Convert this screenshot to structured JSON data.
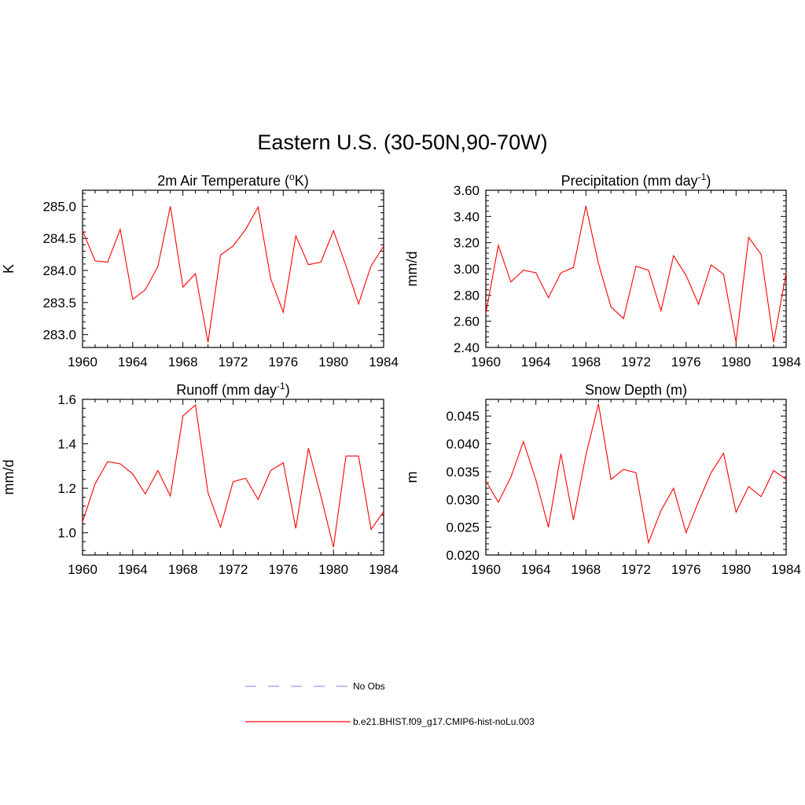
{
  "title": "Eastern U.S. (30-50N,90-70W)",
  "colors": {
    "model": "#ff0000",
    "obs": "#9999ee",
    "axis": "#000000"
  },
  "legend": [
    {
      "label": "No Obs",
      "style": "dashed",
      "color": "#9999ee"
    },
    {
      "label": "b.e21.BHIST.f09_g17.CMIP6-hist-noLu.003",
      "style": "solid",
      "color": "#ff0000"
    }
  ],
  "chart_data": [
    {
      "type": "line",
      "title_main": "2m Air Temperature (",
      "title_sup": "o",
      "title_tail": "K)",
      "ylabel": "K",
      "xlim": [
        1960,
        1984
      ],
      "ylim": [
        282.8,
        285.25
      ],
      "xticks": [
        "1960",
        "1964",
        "1968",
        "1972",
        "1976",
        "1980",
        "1984"
      ],
      "yticks": [
        "283.0",
        "283.5",
        "284.0",
        "284.5",
        "285.0"
      ],
      "x": [
        1960,
        1961,
        1962,
        1963,
        1964,
        1965,
        1966,
        1967,
        1968,
        1969,
        1970,
        1971,
        1972,
        1973,
        1974,
        1975,
        1976,
        1977,
        1978,
        1979,
        1980,
        1981,
        1982,
        1983,
        1984
      ],
      "series": [
        {
          "values": [
            284.62,
            284.15,
            284.13,
            284.64,
            283.55,
            283.7,
            284.06,
            285.0,
            283.74,
            283.95,
            282.88,
            284.24,
            284.38,
            284.64,
            284.99,
            283.87,
            283.35,
            284.54,
            284.09,
            284.13,
            284.62,
            284.07,
            283.48,
            284.07,
            284.38
          ]
        }
      ]
    },
    {
      "type": "line",
      "title_main": "Precipitation (mm day",
      "title_sup": "-1",
      "title_tail": ")",
      "ylabel": "mm/d",
      "xlim": [
        1960,
        1984
      ],
      "ylim": [
        2.4,
        3.6
      ],
      "xticks": [
        "1960",
        "1964",
        "1968",
        "1972",
        "1976",
        "1980",
        "1984"
      ],
      "yticks": [
        "2.40",
        "2.60",
        "2.80",
        "3.00",
        "3.20",
        "3.40",
        "3.60"
      ],
      "x": [
        1960,
        1961,
        1962,
        1963,
        1964,
        1965,
        1966,
        1967,
        1968,
        1969,
        1970,
        1971,
        1972,
        1973,
        1974,
        1975,
        1976,
        1977,
        1978,
        1979,
        1980,
        1981,
        1982,
        1983,
        1984
      ],
      "series": [
        {
          "values": [
            2.66,
            3.18,
            2.9,
            2.99,
            2.97,
            2.78,
            2.97,
            3.01,
            3.48,
            3.04,
            2.71,
            2.62,
            3.02,
            2.99,
            2.68,
            3.1,
            2.95,
            2.73,
            3.03,
            2.96,
            2.44,
            3.24,
            3.11,
            2.44,
            2.97
          ]
        }
      ]
    },
    {
      "type": "line",
      "title_main": "Runoff (mm day",
      "title_sup": "-1",
      "title_tail": ")",
      "ylabel": "mm/d",
      "xlim": [
        1960,
        1984
      ],
      "ylim": [
        0.9,
        1.6
      ],
      "xticks": [
        "1960",
        "1964",
        "1968",
        "1972",
        "1976",
        "1980",
        "1984"
      ],
      "yticks": [
        "1.0",
        "1.2",
        "1.4",
        "1.6"
      ],
      "x": [
        1960,
        1961,
        1962,
        1963,
        1964,
        1965,
        1966,
        1967,
        1968,
        1969,
        1970,
        1971,
        1972,
        1973,
        1974,
        1975,
        1976,
        1977,
        1978,
        1979,
        1980,
        1981,
        1982,
        1983,
        1984
      ],
      "series": [
        {
          "values": [
            1.05,
            1.22,
            1.32,
            1.31,
            1.265,
            1.175,
            1.28,
            1.165,
            1.525,
            1.575,
            1.18,
            1.025,
            1.23,
            1.245,
            1.15,
            1.28,
            1.315,
            1.02,
            1.38,
            1.165,
            0.935,
            1.345,
            1.345,
            1.015,
            1.095
          ]
        }
      ]
    },
    {
      "type": "line",
      "title_main": "Snow Depth (m)",
      "title_sup": "",
      "title_tail": "",
      "ylabel": "m",
      "xlim": [
        1960,
        1984
      ],
      "ylim": [
        0.02,
        0.048
      ],
      "xticks": [
        "1960",
        "1964",
        "1968",
        "1972",
        "1976",
        "1980",
        "1984"
      ],
      "yticks": [
        "0.020",
        "0.025",
        "0.030",
        "0.035",
        "0.040",
        "0.045"
      ],
      "x": [
        1960,
        1961,
        1962,
        1963,
        1964,
        1965,
        1966,
        1967,
        1968,
        1969,
        1970,
        1971,
        1972,
        1973,
        1974,
        1975,
        1976,
        1977,
        1978,
        1979,
        1980,
        1981,
        1982,
        1983,
        1984
      ],
      "series": [
        {
          "values": [
            0.0333,
            0.0295,
            0.034,
            0.0404,
            0.0335,
            0.025,
            0.0382,
            0.0263,
            0.038,
            0.0472,
            0.0336,
            0.0354,
            0.0348,
            0.0222,
            0.028,
            0.032,
            0.024,
            0.0296,
            0.0348,
            0.0383,
            0.0277,
            0.0323,
            0.0305,
            0.0352,
            0.0336
          ]
        }
      ]
    }
  ]
}
